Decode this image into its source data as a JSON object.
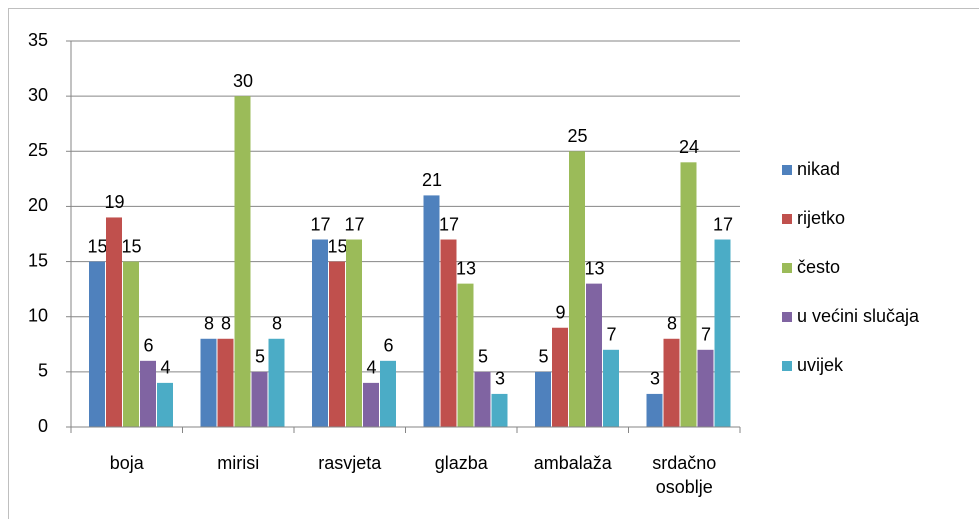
{
  "chart_data": {
    "type": "bar",
    "categories": [
      "boja",
      "mirisi",
      "rasvjeta",
      "glazba",
      "ambalaža",
      "srdačno osoblje"
    ],
    "series": [
      {
        "name": "nikad",
        "color": "#4f81bd",
        "values": [
          15,
          8,
          17,
          21,
          5,
          3
        ]
      },
      {
        "name": "rijetko",
        "color": "#c0504d",
        "values": [
          19,
          8,
          15,
          17,
          9,
          8
        ]
      },
      {
        "name": "često",
        "color": "#9bbb59",
        "values": [
          15,
          30,
          17,
          13,
          25,
          24
        ]
      },
      {
        "name": "u većini slučaja",
        "color": "#8064a2",
        "values": [
          6,
          5,
          4,
          5,
          13,
          7
        ]
      },
      {
        "name": "uvijek",
        "color": "#4bacc6",
        "values": [
          4,
          8,
          6,
          3,
          7,
          17
        ]
      }
    ],
    "ylim": [
      0,
      35
    ],
    "yticks": [
      0,
      5,
      10,
      15,
      20,
      25,
      30,
      35
    ],
    "grid": true,
    "legend": "right"
  }
}
